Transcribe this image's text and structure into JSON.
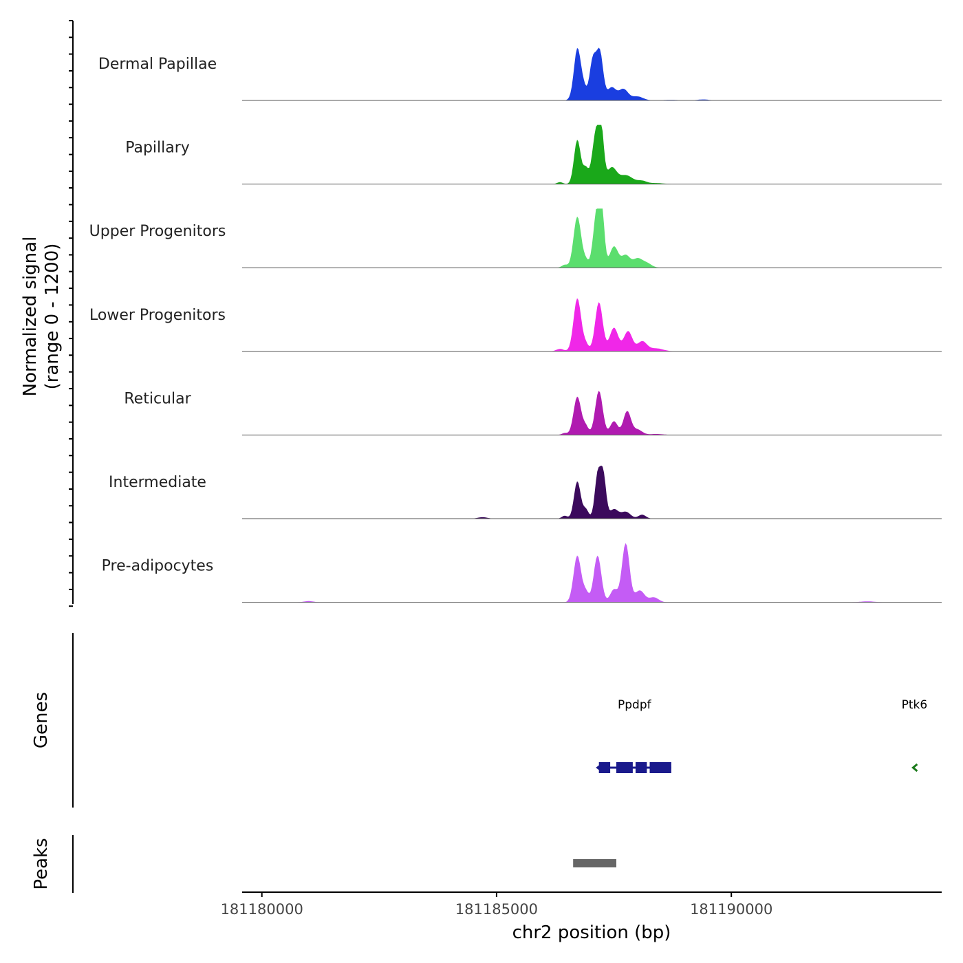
{
  "chart_data": {
    "type": "area",
    "title": "",
    "ylabel_line1": "Normalized signal",
    "ylabel_line2": "(range 0 - 1200)",
    "yrange": [
      0,
      1200
    ],
    "xlabel": "chr2 position (bp)",
    "xlim": [
      181179580,
      181194480
    ],
    "x_ticks": [
      181180000,
      181185000,
      181190000
    ],
    "x_tick_labels": [
      "181180000",
      "181185000",
      "181190000"
    ],
    "tracks": [
      {
        "name": "Dermal Papillae",
        "color": "#1a3ee0",
        "peaks": [
          [
            181186600,
            40,
            60
          ],
          [
            181186720,
            1040,
            70
          ],
          [
            181186850,
            260,
            60
          ],
          [
            181187050,
            820,
            70
          ],
          [
            181187200,
            960,
            70
          ],
          [
            181187450,
            260,
            90
          ],
          [
            181187700,
            230,
            100
          ],
          [
            181188000,
            80,
            120
          ],
          [
            181189400,
            20,
            120
          ],
          [
            181188700,
            10,
            200
          ]
        ]
      },
      {
        "name": "Papillary",
        "color": "#1aa81a",
        "peaks": [
          [
            181186350,
            40,
            60
          ],
          [
            181186720,
            900,
            70
          ],
          [
            181186900,
            320,
            60
          ],
          [
            181187100,
            920,
            70
          ],
          [
            181187220,
            1180,
            60
          ],
          [
            181187450,
            320,
            100
          ],
          [
            181187750,
            180,
            150
          ],
          [
            181188100,
            60,
            100
          ],
          [
            181188400,
            20,
            150
          ]
        ]
      },
      {
        "name": "Upper Progenitors",
        "color": "#5bde6e",
        "peaks": [
          [
            181186450,
            60,
            60
          ],
          [
            181186720,
            1040,
            80
          ],
          [
            181186900,
            140,
            60
          ],
          [
            181187120,
            980,
            70
          ],
          [
            181187230,
            1260,
            60
          ],
          [
            181187500,
            430,
            90
          ],
          [
            181187750,
            250,
            90
          ],
          [
            181188000,
            180,
            100
          ],
          [
            181188200,
            90,
            100
          ]
        ]
      },
      {
        "name": "Lower Progenitors",
        "color": "#f027e8",
        "peaks": [
          [
            181186350,
            50,
            80
          ],
          [
            181186720,
            1080,
            80
          ],
          [
            181186900,
            140,
            60
          ],
          [
            181187180,
            1000,
            80
          ],
          [
            181187500,
            480,
            90
          ],
          [
            181187800,
            410,
            90
          ],
          [
            181188100,
            200,
            100
          ],
          [
            181188400,
            60,
            150
          ]
        ]
      },
      {
        "name": "Reticular",
        "color": "#b01bb0",
        "peaks": [
          [
            181186450,
            40,
            60
          ],
          [
            181186720,
            780,
            80
          ],
          [
            181186900,
            170,
            60
          ],
          [
            181187180,
            900,
            80
          ],
          [
            181187500,
            280,
            80
          ],
          [
            181187780,
            480,
            80
          ],
          [
            181188000,
            110,
            100
          ],
          [
            181188400,
            20,
            150
          ]
        ]
      },
      {
        "name": "Intermediate",
        "color": "#3b0a5c",
        "peaks": [
          [
            181186450,
            60,
            60
          ],
          [
            181186720,
            760,
            70
          ],
          [
            181186900,
            190,
            60
          ],
          [
            181187150,
            860,
            60
          ],
          [
            181187270,
            900,
            60
          ],
          [
            181187500,
            190,
            90
          ],
          [
            181187750,
            140,
            100
          ],
          [
            181188100,
            80,
            80
          ],
          [
            181184700,
            30,
            100
          ]
        ]
      },
      {
        "name": "Pre-adipocytes",
        "color": "#c45cf5",
        "peaks": [
          [
            181186720,
            950,
            80
          ],
          [
            181186900,
            200,
            60
          ],
          [
            181187150,
            950,
            80
          ],
          [
            181187500,
            260,
            80
          ],
          [
            181187750,
            1200,
            80
          ],
          [
            181188050,
            240,
            100
          ],
          [
            181188350,
            100,
            100
          ],
          [
            181181000,
            25,
            100
          ],
          [
            181192900,
            20,
            150
          ]
        ]
      }
    ],
    "genes_label": "Genes",
    "genes": [
      {
        "name": "Ppdpf",
        "start": 181187150,
        "end": 181188720,
        "strand": "-",
        "color": "#1a1a8c",
        "exons": [
          [
            181187180,
            181187420
          ],
          [
            181187550,
            181187900
          ],
          [
            181187960,
            181188200
          ],
          [
            181188260,
            181188720
          ]
        ]
      },
      {
        "name": "Ptk6",
        "start": 181193850,
        "end": 181193950,
        "strand": "-",
        "color": "#1a7a1a",
        "exons": []
      }
    ],
    "peaks_label": "Peaks",
    "peak_regions": [
      {
        "start": 181186630,
        "end": 181187550,
        "color": "#666666"
      }
    ]
  }
}
